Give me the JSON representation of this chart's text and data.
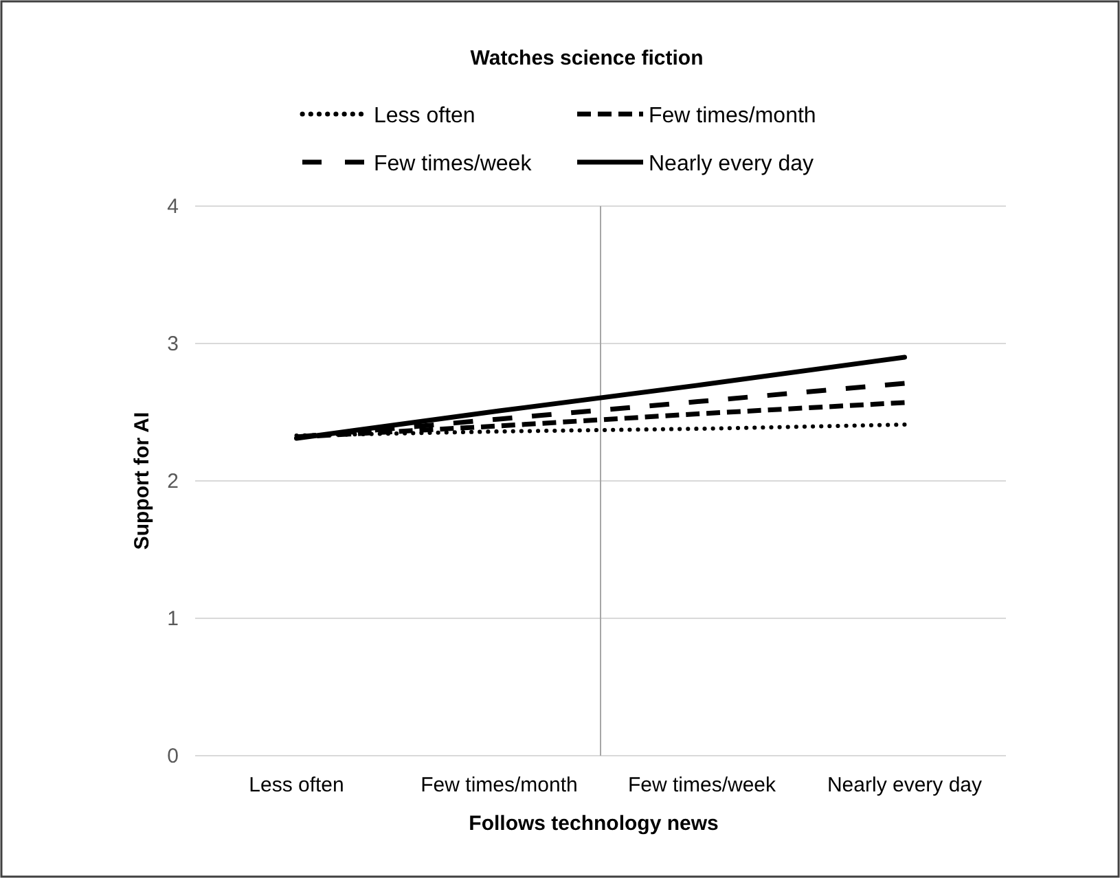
{
  "chart_data": {
    "type": "line",
    "title": "Watches science fiction",
    "xlabel": "Follows technology news",
    "ylabel": "Support for AI",
    "categories": [
      "Less often",
      "Few times/month",
      "Few times/week",
      "Nearly every day"
    ],
    "series": [
      {
        "name": "Less often",
        "color": "#000000",
        "line_style": "dotted",
        "values": [
          2.33,
          2.36,
          2.38,
          2.41
        ]
      },
      {
        "name": "Few times/month",
        "color": "#000000",
        "line_style": "dashed",
        "values": [
          2.32,
          2.4,
          2.49,
          2.57
        ]
      },
      {
        "name": "Few times/week",
        "color": "#000000",
        "line_style": "dashed",
        "values": [
          2.32,
          2.45,
          2.58,
          2.71
        ]
      },
      {
        "name": "Nearly every day",
        "color": "#000000",
        "line_style": "solid",
        "values": [
          2.31,
          2.51,
          2.7,
          2.9
        ]
      }
    ],
    "ylim": [
      0,
      4
    ],
    "yticks": [
      0,
      1,
      2,
      3,
      4
    ],
    "grid": "y",
    "legend": "top",
    "marker": "none",
    "ref_lines": [
      {
        "axis": "x",
        "value": "Few times/month",
        "color": "#a6a6a6"
      }
    ]
  }
}
